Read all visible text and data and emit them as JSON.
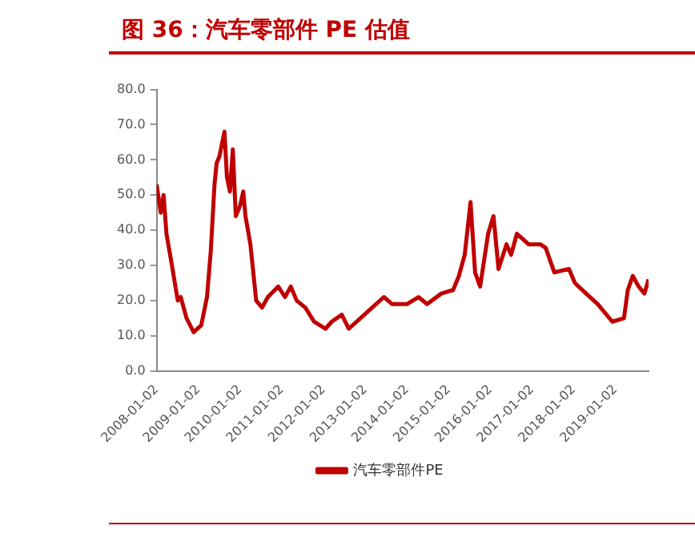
{
  "chart_data": {
    "type": "line",
    "title": "图 36：汽车零部件 PE 估值",
    "x": [
      "2008-01-02",
      "2008-02-07",
      "2008-03-03",
      "2008-03-28",
      "2008-05-15",
      "2008-07-05",
      "2008-07-31",
      "2008-09-20",
      "2008-11-21",
      "2009-01-27",
      "2009-03-18",
      "2009-04-20",
      "2009-05-23",
      "2009-06-10",
      "2009-07-05",
      "2009-08-18",
      "2009-09-09",
      "2009-10-05",
      "2009-10-30",
      "2009-11-25",
      "2010-01-02",
      "2010-01-30",
      "2010-02-18",
      "2010-04-02",
      "2010-05-23",
      "2010-07-13",
      "2010-09-02",
      "2010-12-02",
      "2011-01-30",
      "2011-03-22",
      "2011-05-12",
      "2011-07-27",
      "2011-10-12",
      "2012-01-20",
      "2012-03-14",
      "2012-06-10",
      "2012-08-11",
      "2012-11-21",
      "2013-03-04",
      "2013-06-14",
      "2013-08-26",
      "2014-01-02",
      "2014-04-13",
      "2014-06-28",
      "2014-10-30",
      "2015-02-10",
      "2015-04-02",
      "2015-05-23",
      "2015-07-13",
      "2015-08-22",
      "2015-10-05",
      "2015-12-14",
      "2016-01-30",
      "2016-03-14",
      "2016-05-23",
      "2016-07-02",
      "2016-08-22",
      "2016-12-02",
      "2017-03-14",
      "2017-05-01",
      "2017-07-16",
      "2017-11-21",
      "2018-01-12",
      "2018-04-20",
      "2018-07-31",
      "2018-12-06",
      "2019-03-18",
      "2019-04-20",
      "2019-06-03",
      "2019-07-24",
      "2019-09-13",
      "2019-10-19"
    ],
    "series": [
      {
        "name": "汽车零部件PE",
        "color": "#c00000",
        "values": [
          53,
          45,
          50,
          39,
          30,
          20,
          21,
          15,
          11,
          13,
          21,
          34,
          53,
          59,
          61,
          68,
          55,
          51,
          63,
          44,
          47,
          51,
          44,
          36,
          20,
          18,
          21,
          24,
          21,
          24,
          20,
          18,
          14,
          12,
          14,
          16,
          12,
          15,
          18,
          21,
          19,
          19,
          21,
          19,
          22,
          23,
          27,
          33,
          48,
          28,
          24,
          39,
          44,
          29,
          36,
          33,
          39,
          36,
          36,
          35,
          28,
          29,
          25,
          22,
          19,
          14,
          15,
          23,
          27,
          24,
          22,
          26
        ]
      }
    ],
    "xlim": [
      "2008-01-02",
      "2019-10-19"
    ],
    "xticks": [
      {
        "value": "2008-01-02",
        "label": "2008-01-02"
      },
      {
        "value": "2009-01-02",
        "label": "2009-01-02"
      },
      {
        "value": "2010-01-02",
        "label": "2010-01-02"
      },
      {
        "value": "2011-01-02",
        "label": "2011-01-02"
      },
      {
        "value": "2012-01-02",
        "label": "2012-01-02"
      },
      {
        "value": "2013-01-02",
        "label": "2013-01-02"
      },
      {
        "value": "2014-01-02",
        "label": "2014-01-02"
      },
      {
        "value": "2015-01-02",
        "label": "2015-01-02"
      },
      {
        "value": "2016-01-02",
        "label": "2016-01-02"
      },
      {
        "value": "2017-01-02",
        "label": "2017-01-02"
      },
      {
        "value": "2018-01-02",
        "label": "2018-01-02"
      },
      {
        "value": "2019-01-02",
        "label": "2019-01-02"
      }
    ],
    "ylim": [
      0,
      80
    ],
    "yticks": [
      {
        "value": 0,
        "label": "0.0"
      },
      {
        "value": 10,
        "label": "10.0"
      },
      {
        "value": 20,
        "label": "20.0"
      },
      {
        "value": 30,
        "label": "30.0"
      },
      {
        "value": 40,
        "label": "40.0"
      },
      {
        "value": 50,
        "label": "50.0"
      },
      {
        "value": 60,
        "label": "60.0"
      },
      {
        "value": 70,
        "label": "70.0"
      },
      {
        "value": 80,
        "label": "80.0"
      }
    ],
    "grid": false,
    "legend": "bottom",
    "marker": "none",
    "line_style": "solid"
  }
}
